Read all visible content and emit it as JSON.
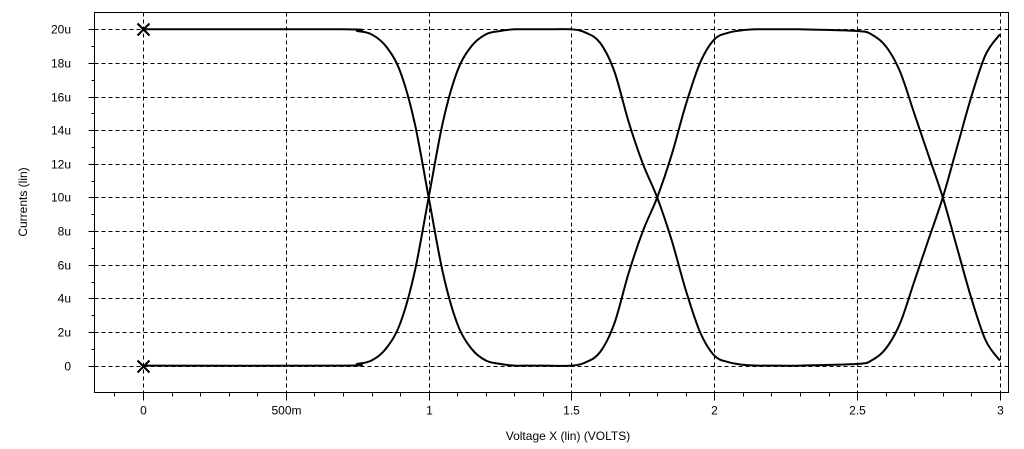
{
  "chart_data": {
    "type": "line",
    "title": "",
    "xlabel": "Voltage X (lin) (VOLTS)",
    "ylabel": "Currents (lin)",
    "xlim": [
      -0.17,
      3.03
    ],
    "ylim": [
      -1.6,
      21.0
    ],
    "x_ticks": [
      {
        "value": 0,
        "label": "0"
      },
      {
        "value": 0.5,
        "label": "500m"
      },
      {
        "value": 1.0,
        "label": "1"
      },
      {
        "value": 1.5,
        "label": "1.5"
      },
      {
        "value": 2.0,
        "label": "2"
      },
      {
        "value": 2.5,
        "label": "2.5"
      },
      {
        "value": 3.0,
        "label": "3"
      }
    ],
    "y_ticks": [
      {
        "value": 0,
        "label": "0"
      },
      {
        "value": 2,
        "label": "2u"
      },
      {
        "value": 4,
        "label": "4u"
      },
      {
        "value": 6,
        "label": "6u"
      },
      {
        "value": 8,
        "label": "8u"
      },
      {
        "value": 10,
        "label": "10u"
      },
      {
        "value": 12,
        "label": "12u"
      },
      {
        "value": 14,
        "label": "14u"
      },
      {
        "value": 16,
        "label": "16u"
      },
      {
        "value": 18,
        "label": "18u"
      },
      {
        "value": 20,
        "label": "20u"
      }
    ],
    "grid": true,
    "series": [
      {
        "x": [
          0,
          0.7,
          0.75,
          0.8,
          0.85,
          0.9,
          0.95,
          1.0,
          1.05,
          1.1,
          1.15,
          1.2,
          1.25,
          1.3,
          1.35,
          1.4,
          1.5,
          1.55,
          1.6,
          1.65,
          1.7,
          1.75,
          1.8,
          1.85,
          1.9,
          1.95,
          2.0,
          2.05,
          2.1,
          2.15,
          2.2,
          2.3,
          2.5,
          2.55,
          2.6,
          2.65,
          2.7,
          2.75,
          2.8,
          2.85,
          2.9,
          2.95,
          3.0
        ],
        "values": [
          0,
          0,
          0.1,
          0.3,
          1.0,
          2.5,
          5.5,
          10.0,
          14.5,
          17.5,
          19.0,
          19.7,
          19.9,
          20,
          20,
          20,
          20,
          19.8,
          19.2,
          17.5,
          14.5,
          12.0,
          10.0,
          7.5,
          4.5,
          2.0,
          0.6,
          0.2,
          0.05,
          0,
          0,
          0,
          0.1,
          0.3,
          1.0,
          2.5,
          5.0,
          7.5,
          10.0,
          13.0,
          16.0,
          18.5,
          19.7
        ],
        "marker_at_start": "x"
      },
      {
        "x": [
          0,
          0.7,
          0.75,
          0.8,
          0.85,
          0.9,
          0.95,
          1.0,
          1.05,
          1.1,
          1.15,
          1.2,
          1.25,
          1.3,
          1.35,
          1.4,
          1.5,
          1.55,
          1.6,
          1.65,
          1.7,
          1.75,
          1.8,
          1.85,
          1.9,
          1.95,
          2.0,
          2.05,
          2.1,
          2.15,
          2.2,
          2.3,
          2.5,
          2.55,
          2.6,
          2.65,
          2.7,
          2.75,
          2.8,
          2.85,
          2.9,
          2.95,
          3.0
        ],
        "values": [
          20,
          20,
          19.9,
          19.7,
          19.0,
          17.5,
          14.5,
          10.0,
          5.5,
          2.5,
          1.0,
          0.3,
          0.1,
          0,
          0,
          0,
          0,
          0.2,
          0.8,
          2.5,
          5.5,
          8.0,
          10.0,
          12.5,
          15.5,
          18.0,
          19.4,
          19.8,
          19.95,
          20,
          20,
          20,
          19.9,
          19.7,
          19.0,
          17.5,
          15.0,
          12.5,
          10.0,
          7.0,
          4.0,
          1.5,
          0.3
        ],
        "marker_at_start": "x"
      }
    ]
  }
}
